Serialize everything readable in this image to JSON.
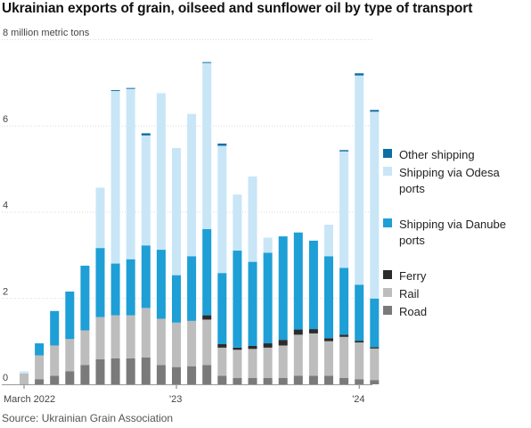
{
  "chart_data": {
    "type": "bar",
    "stacked": true,
    "title": "Ukrainian exports of grain, oilseed and sunflower oil by type of transport",
    "ylabel": "8 million metric tons",
    "ylim": [
      0,
      8
    ],
    "yticks": [
      "0",
      "2",
      "4",
      "6",
      "8 million metric tons"
    ],
    "xtick_labels": [
      {
        "index": 0,
        "label": "March 2022"
      },
      {
        "index": 10,
        "label": "'23"
      },
      {
        "index": 22,
        "label": "'24"
      }
    ],
    "grid": true,
    "legend_position": "right",
    "categories": [
      "Mar 2022",
      "Apr 2022",
      "May 2022",
      "Jun 2022",
      "Jul 2022",
      "Aug 2022",
      "Sep 2022",
      "Oct 2022",
      "Nov 2022",
      "Dec 2022",
      "Jan 2023",
      "Feb 2023",
      "Mar 2023",
      "Apr 2023",
      "May 2023",
      "Jun 2023",
      "Jul 2023",
      "Aug 2023",
      "Sep 2023",
      "Oct 2023",
      "Nov 2023",
      "Dec 2023",
      "Jan 2024",
      "Feb 2024"
    ],
    "series": [
      {
        "name": "Road",
        "color": "#7a7a7a",
        "values": [
          0.0,
          0.12,
          0.2,
          0.3,
          0.45,
          0.58,
          0.6,
          0.6,
          0.62,
          0.45,
          0.4,
          0.42,
          0.45,
          0.2,
          0.15,
          0.15,
          0.15,
          0.15,
          0.2,
          0.2,
          0.2,
          0.15,
          0.12,
          0.1
        ]
      },
      {
        "name": "Rail",
        "color": "#bdbdbd",
        "values": [
          0.25,
          0.55,
          0.7,
          0.75,
          0.8,
          0.98,
          1.0,
          1.0,
          1.15,
          1.07,
          1.03,
          1.05,
          1.05,
          0.65,
          0.65,
          0.67,
          0.7,
          0.75,
          0.95,
          0.98,
          0.8,
          0.95,
          0.85,
          0.73
        ]
      },
      {
        "name": "Ferry",
        "color": "#2b2b2b",
        "values": [
          0,
          0,
          0,
          0,
          0,
          0,
          0,
          0,
          0,
          0,
          0,
          0,
          0.1,
          0.08,
          0.05,
          0.07,
          0.1,
          0.13,
          0.12,
          0.1,
          0.07,
          0.05,
          0.04,
          0.03
        ]
      },
      {
        "name": "Shipping via Danube ports",
        "color": "#1e9fd6",
        "values": [
          0.0,
          0.28,
          0.8,
          1.1,
          1.5,
          1.6,
          1.2,
          1.3,
          1.45,
          1.6,
          1.1,
          1.5,
          2.0,
          1.65,
          2.25,
          1.95,
          2.1,
          2.4,
          2.25,
          2.05,
          1.9,
          1.55,
          1.3,
          1.13
        ]
      },
      {
        "name": "Shipping via Odesa ports",
        "color": "#c9e6f7",
        "values": [
          0.05,
          0,
          0,
          0,
          0,
          1.4,
          4.0,
          3.95,
          2.55,
          3.63,
          2.95,
          3.3,
          3.85,
          2.95,
          1.3,
          1.98,
          0.35,
          0,
          0,
          0,
          0.73,
          2.7,
          4.85,
          4.33
        ]
      },
      {
        "name": "Other shipping",
        "color": "#0e6ea3",
        "values": [
          0,
          0,
          0,
          0,
          0,
          0,
          0.02,
          0.02,
          0.05,
          0,
          0,
          0,
          0.02,
          0.05,
          0,
          0,
          0,
          0,
          0,
          0,
          0,
          0.03,
          0.05,
          0.04
        ]
      }
    ]
  },
  "legend": {
    "items": [
      {
        "label_lines": [
          "Other shipping"
        ],
        "color": "#0e6ea3"
      },
      {
        "label_lines": [
          "Shipping via Odesa",
          "ports"
        ],
        "color": "#c9e6f7"
      },
      {
        "label_lines": [
          "Shipping via Danube",
          "ports"
        ],
        "color": "#1e9fd6"
      },
      {
        "label_lines": [
          "Ferry"
        ],
        "color": "#2b2b2b"
      },
      {
        "label_lines": [
          "Rail"
        ],
        "color": "#bdbdbd"
      },
      {
        "label_lines": [
          "Road"
        ],
        "color": "#7a7a7a"
      }
    ]
  },
  "source": "Source: Ukrainian Grain Association"
}
